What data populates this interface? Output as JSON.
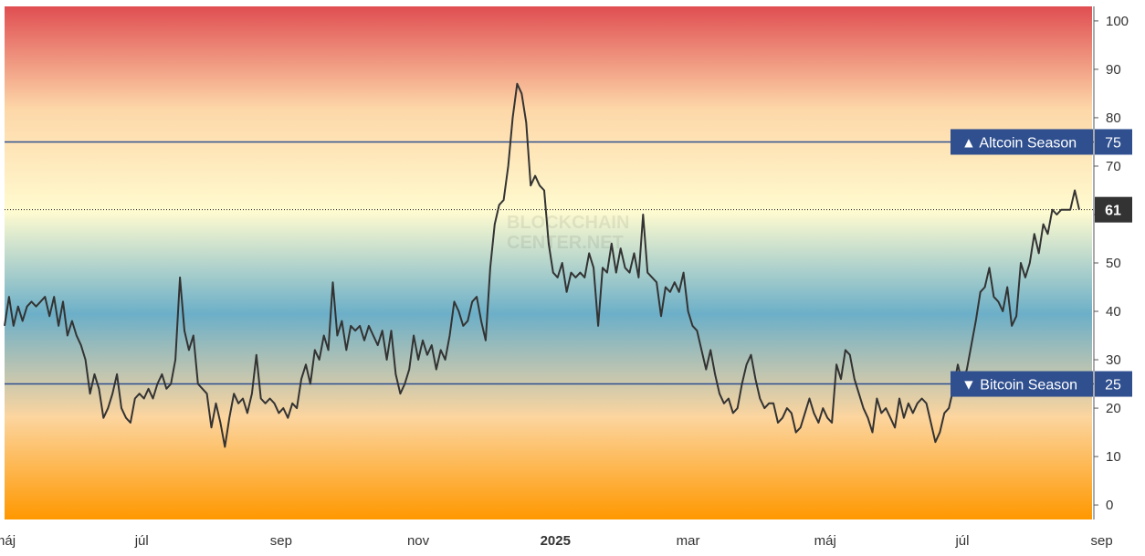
{
  "chart_data": {
    "type": "line",
    "title": "",
    "xlabel": "",
    "ylabel": "",
    "ylim": [
      -3,
      103
    ],
    "yticks": [
      0,
      10,
      20,
      30,
      40,
      50,
      60,
      70,
      80,
      90,
      100
    ],
    "xticks": [
      {
        "label": "máj",
        "i": 0,
        "bold": false
      },
      {
        "label": "júl",
        "i": 61,
        "bold": false
      },
      {
        "label": "sep",
        "i": 123,
        "bold": false
      },
      {
        "label": "nov",
        "i": 184,
        "bold": false
      },
      {
        "label": "2025",
        "i": 245,
        "bold": true
      },
      {
        "label": "mar",
        "i": 304,
        "bold": false
      },
      {
        "label": "máj",
        "i": 365,
        "bold": false
      },
      {
        "label": "júl",
        "i": 426,
        "bold": false
      },
      {
        "label": "sep",
        "i": 488,
        "bold": false
      }
    ],
    "grid": false,
    "legend": "none",
    "background_gradient": [
      "#ff9800",
      "#fcd59f",
      "#6cafc8",
      "#fffbd0",
      "#fdd7a8",
      "#e04e52"
    ],
    "reference_lines": [
      {
        "value": 75,
        "label": "▲ Altcoin Season",
        "value_label": "75",
        "color": "#2f4f8f"
      },
      {
        "value": 25,
        "label": "▼ Bitcoin Season",
        "value_label": "25",
        "color": "#2f4f8f"
      }
    ],
    "current": {
      "value": 61,
      "label": "61",
      "color": "#333333"
    },
    "watermark": [
      "BLOCKCHAIN",
      "CENTER.NET"
    ],
    "series": [
      {
        "color": "#333333",
        "keypoints": [
          [
            0,
            37
          ],
          [
            2,
            43
          ],
          [
            4,
            37
          ],
          [
            6,
            41
          ],
          [
            8,
            38
          ],
          [
            10,
            41
          ],
          [
            12,
            42
          ],
          [
            14,
            41
          ],
          [
            16,
            42
          ],
          [
            18,
            43
          ],
          [
            20,
            39
          ],
          [
            22,
            43
          ],
          [
            24,
            37
          ],
          [
            26,
            42
          ],
          [
            28,
            35
          ],
          [
            30,
            38
          ],
          [
            32,
            35
          ],
          [
            34,
            33
          ],
          [
            36,
            30
          ],
          [
            38,
            23
          ],
          [
            40,
            27
          ],
          [
            42,
            24
          ],
          [
            44,
            18
          ],
          [
            46,
            20
          ],
          [
            48,
            23
          ],
          [
            50,
            27
          ],
          [
            52,
            20
          ],
          [
            54,
            18
          ],
          [
            56,
            17
          ],
          [
            58,
            22
          ],
          [
            60,
            23
          ],
          [
            62,
            22
          ],
          [
            64,
            24
          ],
          [
            66,
            22
          ],
          [
            68,
            25
          ],
          [
            70,
            27
          ],
          [
            72,
            24
          ],
          [
            74,
            25
          ],
          [
            76,
            30
          ],
          [
            78,
            47
          ],
          [
            80,
            36
          ],
          [
            82,
            32
          ],
          [
            84,
            35
          ],
          [
            86,
            25
          ],
          [
            88,
            24
          ],
          [
            90,
            23
          ],
          [
            92,
            16
          ],
          [
            94,
            21
          ],
          [
            96,
            17
          ],
          [
            98,
            12
          ],
          [
            100,
            18
          ],
          [
            102,
            23
          ],
          [
            104,
            21
          ],
          [
            106,
            22
          ],
          [
            108,
            19
          ],
          [
            110,
            23
          ],
          [
            112,
            31
          ],
          [
            114,
            22
          ],
          [
            116,
            21
          ],
          [
            118,
            22
          ],
          [
            120,
            21
          ],
          [
            122,
            19
          ],
          [
            124,
            20
          ],
          [
            126,
            18
          ],
          [
            128,
            21
          ],
          [
            130,
            20
          ],
          [
            132,
            26
          ],
          [
            134,
            29
          ],
          [
            136,
            25
          ],
          [
            138,
            32
          ],
          [
            140,
            30
          ],
          [
            142,
            35
          ],
          [
            144,
            32
          ],
          [
            146,
            46
          ],
          [
            148,
            35
          ],
          [
            150,
            38
          ],
          [
            152,
            32
          ],
          [
            154,
            37
          ],
          [
            156,
            36
          ],
          [
            158,
            37
          ],
          [
            160,
            34
          ],
          [
            162,
            37
          ],
          [
            164,
            35
          ],
          [
            166,
            33
          ],
          [
            168,
            36
          ],
          [
            170,
            30
          ],
          [
            172,
            36
          ],
          [
            174,
            27
          ],
          [
            176,
            23
          ],
          [
            178,
            25
          ],
          [
            180,
            28
          ],
          [
            182,
            35
          ],
          [
            184,
            30
          ],
          [
            186,
            34
          ],
          [
            188,
            31
          ],
          [
            190,
            33
          ],
          [
            192,
            28
          ],
          [
            194,
            32
          ],
          [
            196,
            30
          ],
          [
            198,
            35
          ],
          [
            200,
            42
          ],
          [
            202,
            40
          ],
          [
            204,
            37
          ],
          [
            206,
            38
          ],
          [
            208,
            42
          ],
          [
            210,
            43
          ],
          [
            212,
            38
          ],
          [
            214,
            34
          ],
          [
            216,
            49
          ],
          [
            218,
            58
          ],
          [
            220,
            62
          ],
          [
            222,
            63
          ],
          [
            224,
            70
          ],
          [
            226,
            80
          ],
          [
            228,
            87
          ],
          [
            230,
            85
          ],
          [
            232,
            79
          ],
          [
            234,
            66
          ],
          [
            236,
            68
          ],
          [
            238,
            66
          ],
          [
            240,
            65
          ],
          [
            242,
            54
          ],
          [
            244,
            48
          ],
          [
            246,
            47
          ],
          [
            248,
            50
          ],
          [
            250,
            44
          ],
          [
            252,
            48
          ],
          [
            254,
            47
          ],
          [
            256,
            48
          ],
          [
            258,
            47
          ],
          [
            260,
            52
          ],
          [
            262,
            49
          ],
          [
            264,
            37
          ],
          [
            266,
            49
          ],
          [
            268,
            48
          ],
          [
            270,
            54
          ],
          [
            272,
            48
          ],
          [
            274,
            53
          ],
          [
            276,
            49
          ],
          [
            278,
            48
          ],
          [
            280,
            52
          ],
          [
            282,
            47
          ],
          [
            284,
            60
          ],
          [
            286,
            48
          ],
          [
            288,
            47
          ],
          [
            290,
            46
          ],
          [
            292,
            39
          ],
          [
            294,
            45
          ],
          [
            296,
            44
          ],
          [
            298,
            46
          ],
          [
            300,
            44
          ],
          [
            302,
            48
          ],
          [
            304,
            40
          ],
          [
            306,
            37
          ],
          [
            308,
            36
          ],
          [
            310,
            32
          ],
          [
            312,
            28
          ],
          [
            314,
            32
          ],
          [
            316,
            27
          ],
          [
            318,
            23
          ],
          [
            320,
            21
          ],
          [
            322,
            22
          ],
          [
            324,
            19
          ],
          [
            326,
            20
          ],
          [
            328,
            25
          ],
          [
            330,
            29
          ],
          [
            332,
            31
          ],
          [
            334,
            26
          ],
          [
            336,
            22
          ],
          [
            338,
            20
          ],
          [
            340,
            21
          ],
          [
            342,
            21
          ],
          [
            344,
            17
          ],
          [
            346,
            18
          ],
          [
            348,
            20
          ],
          [
            350,
            19
          ],
          [
            352,
            15
          ],
          [
            354,
            16
          ],
          [
            356,
            19
          ],
          [
            358,
            22
          ],
          [
            360,
            19
          ],
          [
            362,
            17
          ],
          [
            364,
            20
          ],
          [
            366,
            18
          ],
          [
            368,
            17
          ],
          [
            370,
            29
          ],
          [
            372,
            26
          ],
          [
            374,
            32
          ],
          [
            376,
            31
          ],
          [
            378,
            26
          ],
          [
            380,
            23
          ],
          [
            382,
            20
          ],
          [
            384,
            18
          ],
          [
            386,
            15
          ],
          [
            388,
            22
          ],
          [
            390,
            19
          ],
          [
            392,
            20
          ],
          [
            394,
            18
          ],
          [
            396,
            16
          ],
          [
            398,
            22
          ],
          [
            400,
            18
          ],
          [
            402,
            21
          ],
          [
            404,
            19
          ],
          [
            406,
            21
          ],
          [
            408,
            22
          ],
          [
            410,
            21
          ],
          [
            412,
            17
          ],
          [
            414,
            13
          ],
          [
            416,
            15
          ],
          [
            418,
            19
          ],
          [
            420,
            20
          ],
          [
            422,
            24
          ],
          [
            424,
            29
          ],
          [
            426,
            25
          ],
          [
            428,
            28
          ],
          [
            430,
            33
          ],
          [
            432,
            38
          ],
          [
            434,
            44
          ],
          [
            436,
            45
          ],
          [
            438,
            49
          ],
          [
            440,
            43
          ],
          [
            442,
            42
          ],
          [
            444,
            40
          ],
          [
            446,
            45
          ],
          [
            448,
            37
          ],
          [
            450,
            39
          ],
          [
            452,
            50
          ],
          [
            454,
            47
          ],
          [
            456,
            50
          ],
          [
            458,
            56
          ],
          [
            460,
            52
          ],
          [
            462,
            58
          ],
          [
            464,
            56
          ],
          [
            466,
            61
          ],
          [
            468,
            60
          ],
          [
            470,
            61
          ],
          [
            472,
            61
          ],
          [
            474,
            61
          ],
          [
            476,
            65
          ],
          [
            478,
            61
          ]
        ]
      }
    ]
  }
}
